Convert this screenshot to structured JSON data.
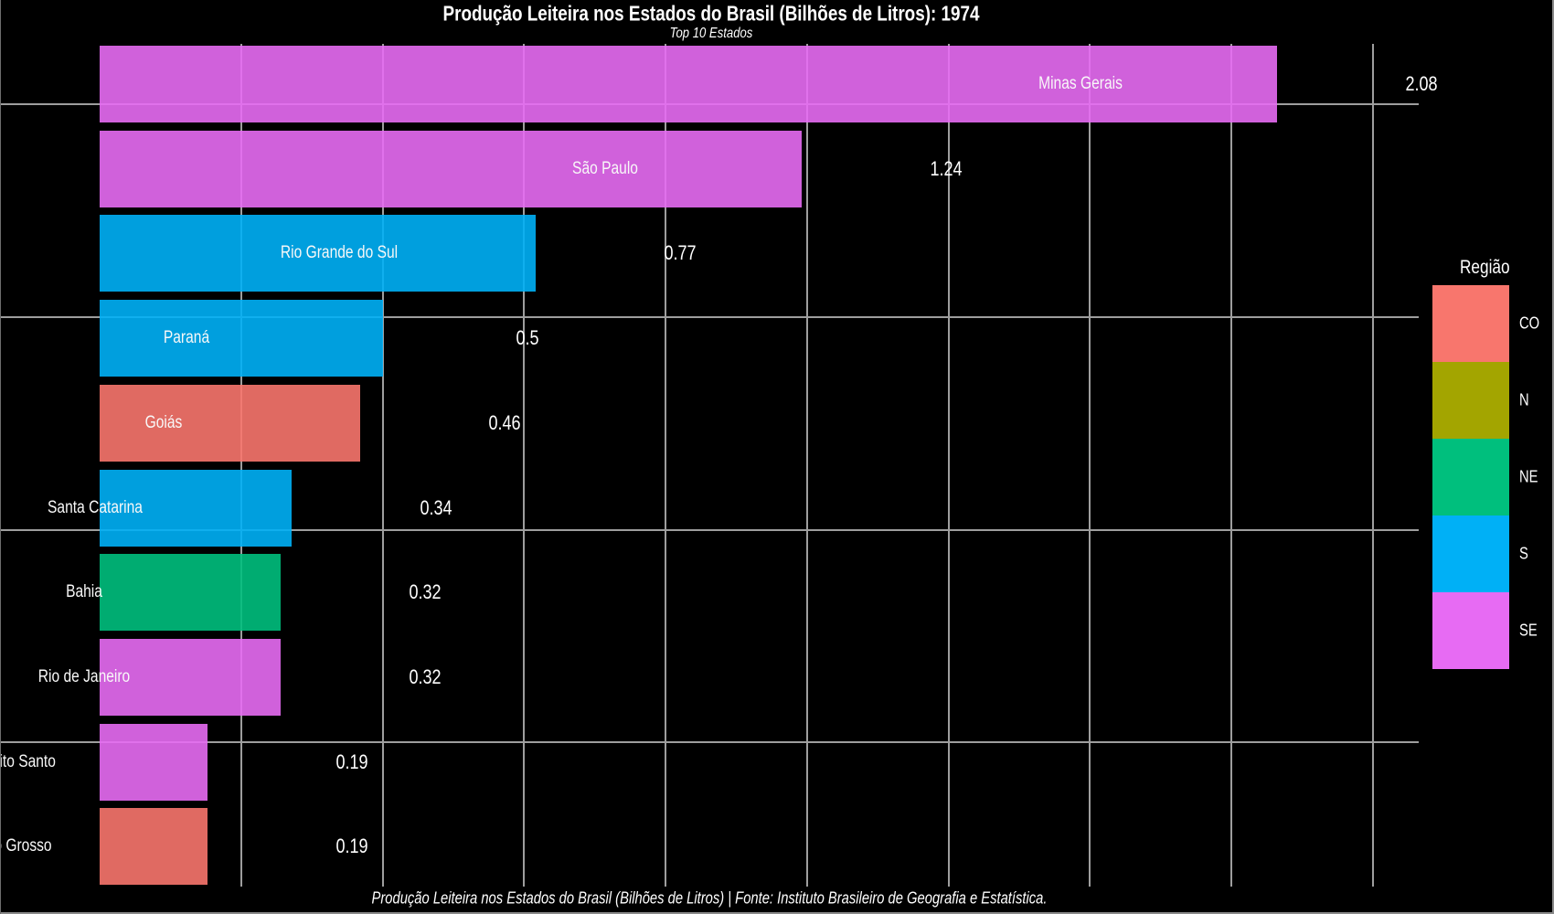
{
  "title": "Produção Leiteira nos Estados do Brasil (Bilhões de Litros): 1974",
  "subtitle": "Top 10 Estados",
  "caption": "Produção Leiteira nos Estados do Brasil (Bilhões de Litros) | Fonte: Instituto Brasileiro de Geografia e Estatística.",
  "legend": {
    "title": "Região",
    "entries": [
      {
        "label": "CO",
        "color": "#F8766D"
      },
      {
        "label": "N",
        "color": "#A3A500"
      },
      {
        "label": "NE",
        "color": "#00BF7D"
      },
      {
        "label": "S",
        "color": "#00B0F6"
      },
      {
        "label": "SE",
        "color": "#E76BF3"
      }
    ]
  },
  "chart_data": {
    "type": "bar",
    "orientation": "horizontal",
    "title": "Produção Leiteira nos Estados do Brasil (Bilhões de Litros): 1974",
    "subtitle": "Top 10 Estados",
    "xlabel": "",
    "ylabel": "",
    "xlim": [
      0,
      2.33
    ],
    "x_gridline_interval": 0.25,
    "grid": true,
    "legend_position": "right",
    "bar_fill_alpha": 0.9,
    "bars": [
      {
        "state": "Minas Gerais",
        "value": 2.08,
        "label": "2.08",
        "region": "SE"
      },
      {
        "state": "São Paulo",
        "value": 1.24,
        "label": "1.24",
        "region": "SE"
      },
      {
        "state": "Rio Grande do Sul",
        "value": 0.77,
        "label": "0.77",
        "region": "S"
      },
      {
        "state": "Paraná",
        "value": 0.5,
        "label": "0.5",
        "region": "S"
      },
      {
        "state": "Goiás",
        "value": 0.46,
        "label": "0.46",
        "region": "CO"
      },
      {
        "state": "Santa Catarina",
        "value": 0.34,
        "label": "0.34",
        "region": "S"
      },
      {
        "state": "Bahia",
        "value": 0.32,
        "label": "0.32",
        "region": "NE"
      },
      {
        "state": "Rio de Janeiro",
        "value": 0.32,
        "label": "0.32",
        "region": "SE"
      },
      {
        "state": "Espírito Santo",
        "value": 0.19,
        "label": "0.19",
        "region": "SE"
      },
      {
        "state": "Mato Grosso",
        "value": 0.19,
        "label": "0.19",
        "region": "CO"
      }
    ]
  },
  "colors": {
    "background": "#000000",
    "text": "#ffffff",
    "grid": "#9e9e9e"
  }
}
